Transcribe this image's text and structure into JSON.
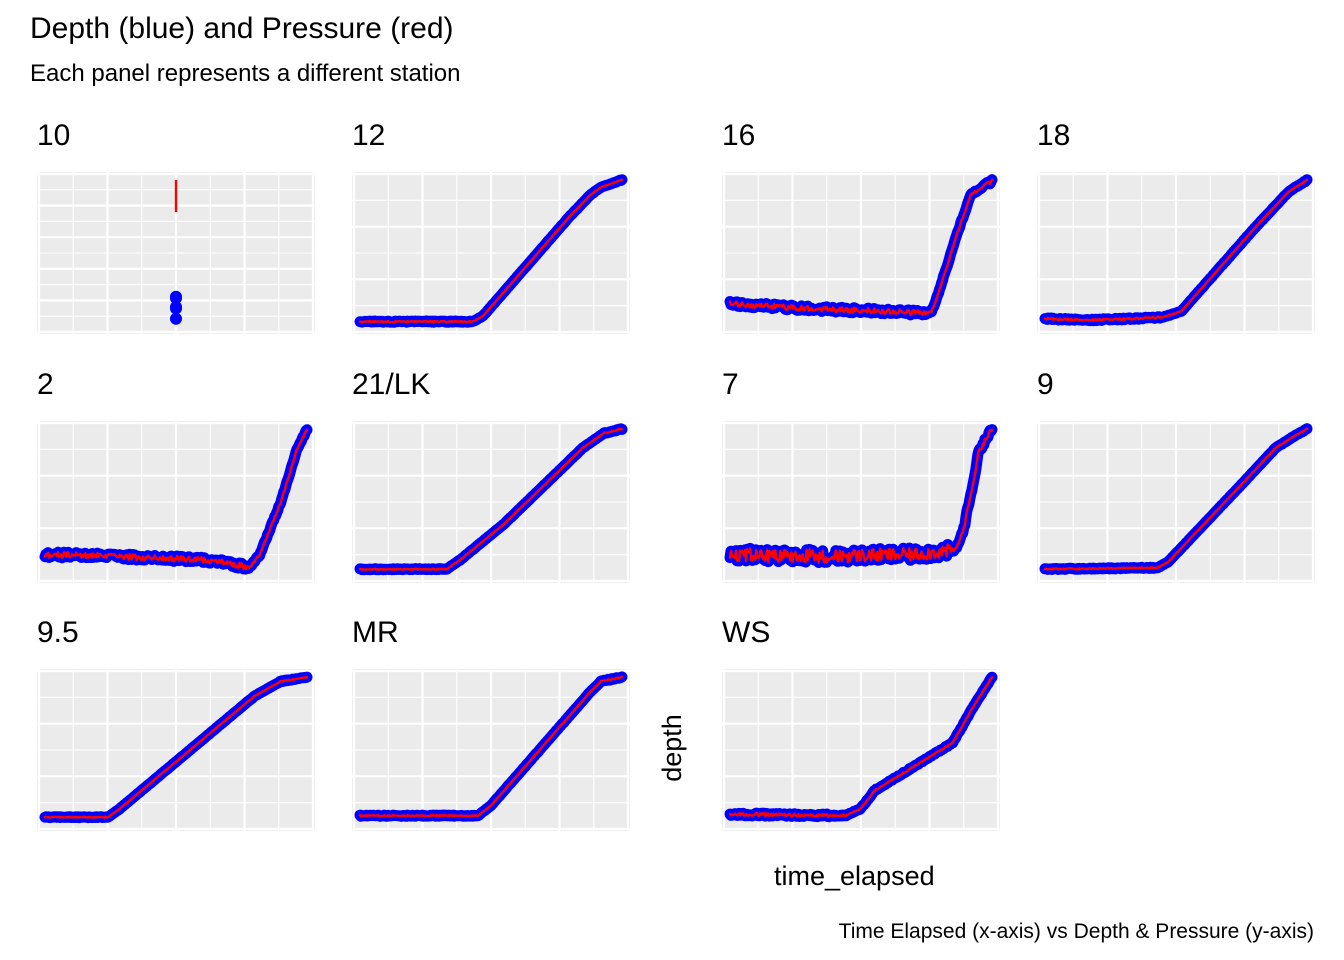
{
  "title": "Depth (blue) and Pressure (red)",
  "subtitle": "Each panel represents a different station",
  "caption": "Time Elapsed (x-axis) vs Depth & Pressure (y-axis)",
  "xlabel": "time_elapsed",
  "ylabel": "depth",
  "colors": {
    "panel_bg": "#ebebeb",
    "gridline": "#ffffff",
    "depth": "#0000ff",
    "pressure": "#ff0000"
  },
  "chart_data": {
    "type": "line",
    "facet": "station",
    "scales": "free",
    "axis_ticks_shown": false,
    "series": [
      {
        "name": "Depth (blue)",
        "color": "#0000ff",
        "geom": "point"
      },
      {
        "name": "Pressure (red)",
        "color": "#ff0000",
        "geom": "line"
      }
    ],
    "panels": [
      {
        "station": "10",
        "shape": "sparse",
        "depth_points": [
          [
            0.5,
            0.13
          ],
          [
            0.5,
            0.19
          ],
          [
            0.5,
            0.2
          ],
          [
            0.5,
            0.05
          ],
          [
            0.5,
            0.12
          ]
        ],
        "pressure_line": [
          [
            0.5,
            0.78
          ],
          [
            0.5,
            1.0
          ]
        ]
      },
      {
        "station": "12",
        "shape": "ramp",
        "points": [
          [
            0,
            0.03
          ],
          [
            0.43,
            0.03
          ],
          [
            0.47,
            0.07
          ],
          [
            0.8,
            0.75
          ],
          [
            0.88,
            0.9
          ],
          [
            0.92,
            0.95
          ],
          [
            1,
            1
          ]
        ],
        "noise": 0.004
      },
      {
        "station": "16",
        "shape": "ramp",
        "points": [
          [
            0,
            0.15
          ],
          [
            0.3,
            0.12
          ],
          [
            0.6,
            0.1
          ],
          [
            0.75,
            0.09
          ],
          [
            0.77,
            0.1
          ],
          [
            0.8,
            0.25
          ],
          [
            0.87,
            0.65
          ],
          [
            0.92,
            0.9
          ],
          [
            1,
            1
          ]
        ],
        "noise": 0.018
      },
      {
        "station": "18",
        "shape": "ramp",
        "points": [
          [
            0,
            0.05
          ],
          [
            0.18,
            0.04
          ],
          [
            0.45,
            0.06
          ],
          [
            0.52,
            0.1
          ],
          [
            0.8,
            0.67
          ],
          [
            0.93,
            0.92
          ],
          [
            1,
            1
          ]
        ],
        "noise": 0.006
      },
      {
        "station": "2",
        "shape": "ramp",
        "points": [
          [
            0,
            0.14
          ],
          [
            0.4,
            0.12
          ],
          [
            0.65,
            0.1
          ],
          [
            0.78,
            0.05
          ],
          [
            0.82,
            0.14
          ],
          [
            0.9,
            0.5
          ],
          [
            0.96,
            0.85
          ],
          [
            1,
            1
          ]
        ],
        "noise": 0.02
      },
      {
        "station": "21/LK",
        "shape": "ramp",
        "points": [
          [
            0,
            0.04
          ],
          [
            0.33,
            0.04
          ],
          [
            0.38,
            0.1
          ],
          [
            0.55,
            0.35
          ],
          [
            0.85,
            0.87
          ],
          [
            0.93,
            0.97
          ],
          [
            1,
            1
          ]
        ],
        "noise": 0.004
      },
      {
        "station": "7",
        "shape": "ramp",
        "points": [
          [
            0,
            0.14
          ],
          [
            0.35,
            0.13
          ],
          [
            0.7,
            0.14
          ],
          [
            0.86,
            0.17
          ],
          [
            0.89,
            0.3
          ],
          [
            0.93,
            0.65
          ],
          [
            0.95,
            0.85
          ],
          [
            1,
            1
          ]
        ],
        "noise": 0.045
      },
      {
        "station": "9",
        "shape": "ramp",
        "points": [
          [
            0,
            0.04
          ],
          [
            0.43,
            0.05
          ],
          [
            0.47,
            0.09
          ],
          [
            0.75,
            0.62
          ],
          [
            0.88,
            0.87
          ],
          [
            0.95,
            0.95
          ],
          [
            1,
            1
          ]
        ],
        "noise": 0.004
      },
      {
        "station": "9.5",
        "shape": "ramp",
        "points": [
          [
            0,
            0.04
          ],
          [
            0.24,
            0.04
          ],
          [
            0.28,
            0.09
          ],
          [
            0.8,
            0.87
          ],
          [
            0.9,
            0.97
          ],
          [
            1,
            1
          ]
        ],
        "noise": 0.003
      },
      {
        "station": "MR",
        "shape": "ramp",
        "points": [
          [
            0,
            0.05
          ],
          [
            0.45,
            0.05
          ],
          [
            0.5,
            0.12
          ],
          [
            0.88,
            0.9
          ],
          [
            0.92,
            0.97
          ],
          [
            1,
            1
          ]
        ],
        "noise": 0.004
      },
      {
        "station": "WS",
        "shape": "ramp",
        "points": [
          [
            0,
            0.06
          ],
          [
            0.44,
            0.05
          ],
          [
            0.5,
            0.1
          ],
          [
            0.55,
            0.22
          ],
          [
            0.85,
            0.55
          ],
          [
            0.93,
            0.8
          ],
          [
            1,
            1
          ]
        ],
        "noise": 0.01
      }
    ]
  }
}
